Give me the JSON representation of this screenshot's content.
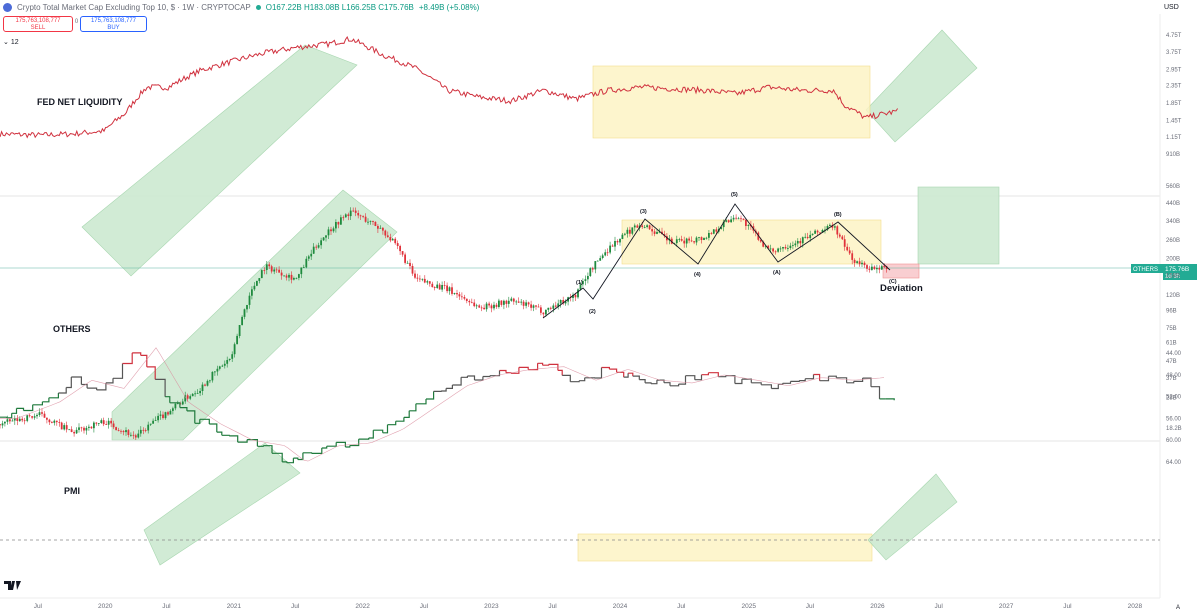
{
  "header": {
    "title": "Crypto Total Market Cap Excluding Top 10, $ · 1W · CRYPTOCAP",
    "ohlc": "O167.22B H183.08B L166.25B C175.76B",
    "change": "+8.49B (+5.08%)",
    "sell_price": "175,763,108,777",
    "sell_label": "SELL",
    "spread": "0",
    "buy_price": "175,763,108,777",
    "buy_label": "BUY",
    "indicator_count": "12",
    "currency": "USD"
  },
  "colors": {
    "liquidity": "#d0323f",
    "pmi_line": "#1f7a3c",
    "pmi_low": "#d0323f",
    "pmi_mid": "#555555",
    "candle_up": "#1f8a3e",
    "candle_down": "#e0313a",
    "green_zone": "#cde9d1",
    "yellow_zone": "#fdf4c5",
    "red_zone": "#f9c9cd"
  },
  "annotations": {
    "fed": "FED NET LIQUIDITY",
    "others": "OTHERS",
    "pmi": "PMI",
    "deviation": "Deviation",
    "waves": [
      "(1)",
      "(2)",
      "(3)",
      "(4)",
      "(5)",
      "(A)",
      "(B)",
      "(C)"
    ],
    "price_tag_symbol": "OTHERS",
    "price_tag_value": "175.76B",
    "price_tag_time": "1d 3h"
  },
  "chart_data": [
    {
      "type": "line",
      "series": [
        {
          "name": "FED NET LIQUIDITY",
          "x": [
            "2019-03",
            "2019-07",
            "2019-10",
            "2020-01",
            "2020-03",
            "2020-05",
            "2020-07",
            "2020-10",
            "2021-01",
            "2021-04",
            "2021-07",
            "2021-10",
            "2021-12",
            "2022-03",
            "2022-06",
            "2022-09",
            "2022-12",
            "2023-03",
            "2023-06",
            "2023-09",
            "2023-12",
            "2024-03",
            "2024-06",
            "2024-09",
            "2024-12",
            "2025-03",
            "2025-06",
            "2025-09",
            "2025-10",
            "2025-12",
            "2026-01",
            "2026-03"
          ],
          "values": [
            1.2,
            1.18,
            1.2,
            1.25,
            1.6,
            2.3,
            2.3,
            2.9,
            3.3,
            3.7,
            4.0,
            4.2,
            4.5,
            3.6,
            3.0,
            2.2,
            2.0,
            1.9,
            2.2,
            1.95,
            2.2,
            2.3,
            2.25,
            2.2,
            2.1,
            2.3,
            2.2,
            2.2,
            1.8,
            1.5,
            1.55,
            1.65
          ]
        }
      ],
      "y_ticks": [
        "4.75T",
        "3.75T",
        "2.95T",
        "2.35T",
        "1.85T",
        "1.45T",
        "1.15T",
        "910B"
      ]
    },
    {
      "type": "candlestick",
      "series": [
        {
          "name": "OTHERS",
          "x": [
            "2019-03",
            "2019-07",
            "2019-10",
            "2020-01",
            "2020-04",
            "2020-07",
            "2020-10",
            "2021-01",
            "2021-04",
            "2021-07",
            "2021-10",
            "2021-12",
            "2022-03",
            "2022-06",
            "2022-09",
            "2022-12",
            "2023-03",
            "2023-06",
            "2023-09",
            "2023-12",
            "2024-03",
            "2024-06",
            "2024-09",
            "2024-12",
            "2025-03",
            "2025-06",
            "2025-09",
            "2025-10",
            "2025-11",
            "2026-01",
            "2026-02"
          ],
          "values": [
            19,
            22,
            17,
            20,
            16,
            23,
            32,
            50,
            180,
            150,
            300,
            390,
            300,
            150,
            130,
            100,
            110,
            95,
            120,
            230,
            330,
            250,
            270,
            370,
            220,
            260,
            320,
            240,
            190,
            170,
            175.76
          ]
        }
      ],
      "y_ticks": [
        "560B",
        "440B",
        "340B",
        "260B",
        "200B",
        "158B",
        "120B",
        "96B",
        "75B",
        "61B",
        "47B",
        "37B",
        "28B",
        "18.2B"
      ]
    },
    {
      "type": "line",
      "series": [
        {
          "name": "PMI",
          "x": [
            "2019-03",
            "2019-07",
            "2019-10",
            "2020-01",
            "2020-04",
            "2020-07",
            "2020-10",
            "2021-01",
            "2021-04",
            "2021-06",
            "2021-09",
            "2021-12",
            "2022-03",
            "2022-06",
            "2022-09",
            "2022-12",
            "2023-03",
            "2023-06",
            "2023-09",
            "2023-12",
            "2024-03",
            "2024-06",
            "2024-09",
            "2024-12",
            "2025-03",
            "2025-06",
            "2025-09",
            "2025-12",
            "2026-01",
            "2026-02"
          ],
          "values": [
            56,
            53,
            49,
            50.5,
            43,
            53,
            57,
            60,
            61,
            64,
            61,
            60.5,
            58,
            54,
            50,
            48,
            47,
            46.5,
            49,
            47,
            49,
            49.5,
            48,
            49,
            50,
            48.5,
            49,
            48.5,
            52,
            52
          ]
        }
      ],
      "reference_line": 50,
      "y_ticks": [
        "64.00",
        "60.00",
        "56.00",
        "52.00",
        "48.00",
        "44.00"
      ]
    }
  ],
  "x_axis": {
    "labels": [
      "Jul",
      "2020",
      "Jul",
      "2021",
      "Jul",
      "2022",
      "Jul",
      "2023",
      "Jul",
      "2024",
      "Jul",
      "2025",
      "Jul",
      "2026",
      "Jul",
      "2027",
      "Jul",
      "2028"
    ]
  }
}
